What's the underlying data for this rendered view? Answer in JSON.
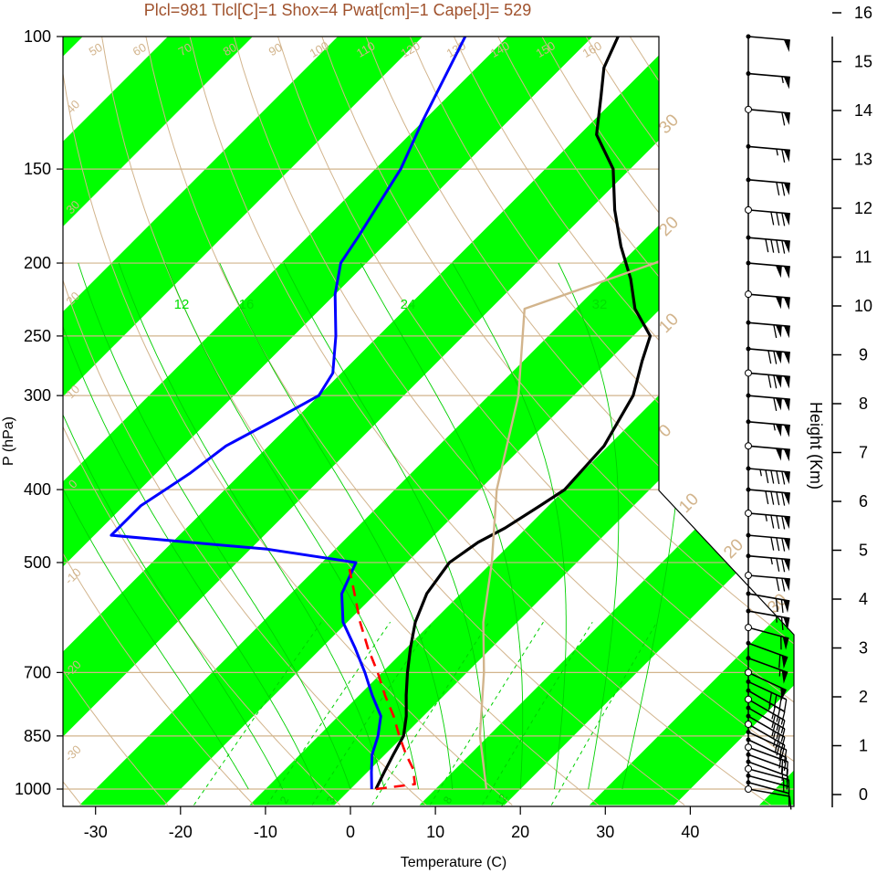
{
  "chart_data": {
    "type": "skew-t",
    "title": "Plcl=981 Tlcl[C]=1 Shox=4 Pwat[cm]=1 Cape[J]= 529",
    "xlabel": "Temperature (C)",
    "ylabel": "P (hPa)",
    "height_label": "Height (Km)",
    "x_ticks": [
      "-30",
      "-20",
      "-10",
      "0",
      "10",
      "20",
      "30",
      "40"
    ],
    "p_ticks": [
      "100",
      "150",
      "200",
      "250",
      "300",
      "400",
      "500",
      "700",
      "850",
      "1000"
    ],
    "height_ticks": [
      "0",
      "1",
      "2",
      "3",
      "4",
      "5",
      "6",
      "7",
      "8",
      "9",
      "10",
      "11",
      "12",
      "13",
      "14",
      "15",
      "16"
    ],
    "dry_adiabat_labels": [
      "50",
      "60",
      "70",
      "80",
      "90",
      "100",
      "110",
      "120",
      "130",
      "140",
      "150",
      "160"
    ],
    "temp_labels_left": [
      "40",
      "30",
      "20",
      "10",
      "0",
      "-10",
      "-20",
      "-30"
    ],
    "temp_labels_right": [
      "30",
      "20",
      "10",
      "0",
      "10",
      "20",
      "30"
    ],
    "moist_adiabat_labels": [
      "12",
      "16",
      "24",
      "32"
    ],
    "mixing_ratio_labels": [
      "2",
      "3",
      "8",
      "12"
    ],
    "xlim": [
      -34,
      52
    ],
    "plim": [
      1050,
      100
    ],
    "series": [
      {
        "role": "temperature",
        "color": "#000000",
        "points": [
          [
            1000,
            3
          ],
          [
            950,
            2
          ],
          [
            900,
            1
          ],
          [
            850,
            0
          ],
          [
            800,
            -2
          ],
          [
            750,
            -4.5
          ],
          [
            700,
            -7
          ],
          [
            650,
            -9.5
          ],
          [
            600,
            -12
          ],
          [
            550,
            -14
          ],
          [
            500,
            -15
          ],
          [
            470,
            -14
          ],
          [
            450,
            -12.5
          ],
          [
            420,
            -11
          ],
          [
            400,
            -10
          ],
          [
            350,
            -10.5
          ],
          [
            300,
            -13
          ],
          [
            270,
            -16
          ],
          [
            250,
            -18
          ],
          [
            230,
            -23
          ],
          [
            210,
            -27
          ],
          [
            190,
            -32
          ],
          [
            170,
            -37
          ],
          [
            150,
            -42
          ],
          [
            135,
            -48
          ],
          [
            120,
            -52
          ],
          [
            110,
            -55
          ],
          [
            100,
            -57
          ]
        ]
      },
      {
        "role": "dewpoint",
        "color": "#0000ff",
        "points": [
          [
            1000,
            2.5
          ],
          [
            950,
            0.5
          ],
          [
            900,
            -1.5
          ],
          [
            850,
            -3
          ],
          [
            800,
            -5
          ],
          [
            750,
            -8.5
          ],
          [
            700,
            -12
          ],
          [
            650,
            -16
          ],
          [
            600,
            -20.5
          ],
          [
            550,
            -24
          ],
          [
            500,
            -26
          ],
          [
            480,
            -38
          ],
          [
            470,
            -48
          ],
          [
            460,
            -58
          ],
          [
            420,
            -58
          ],
          [
            400,
            -57
          ],
          [
            380,
            -56
          ],
          [
            350,
            -55
          ],
          [
            320,
            -52
          ],
          [
            300,
            -50
          ],
          [
            280,
            -51
          ],
          [
            250,
            -55
          ],
          [
            220,
            -60
          ],
          [
            200,
            -63
          ],
          [
            185,
            -64
          ],
          [
            150,
            -67
          ],
          [
            130,
            -70
          ],
          [
            100,
            -75
          ]
        ]
      },
      {
        "role": "parcel",
        "color": "#ff0000",
        "points": [
          [
            1000,
            3
          ],
          [
            985,
            7
          ],
          [
            940,
            5
          ],
          [
            900,
            2.5
          ],
          [
            850,
            -0.5
          ],
          [
            800,
            -3.5
          ],
          [
            750,
            -7
          ],
          [
            700,
            -10.5
          ],
          [
            650,
            -14.5
          ],
          [
            600,
            -18.5
          ],
          [
            550,
            -22.5
          ],
          [
            510,
            -26
          ]
        ]
      },
      {
        "role": "reference",
        "color": "#d2b48c",
        "points": [
          [
            1000,
            16
          ],
          [
            850,
            9
          ],
          [
            700,
            2
          ],
          [
            600,
            -4
          ],
          [
            500,
            -10
          ],
          [
            400,
            -18
          ],
          [
            300,
            -26.5
          ],
          [
            230,
            -36
          ],
          [
            200,
            -26
          ],
          [
            150,
            -10
          ],
          [
            100,
            8
          ]
        ]
      }
    ],
    "wind_levels": [
      1000,
      980,
      960,
      940,
      920,
      900,
      880,
      860,
      840,
      820,
      800,
      780,
      760,
      740,
      720,
      700,
      670,
      640,
      610,
      580,
      550,
      520,
      490,
      460,
      430,
      400,
      375,
      350,
      325,
      300,
      280,
      260,
      240,
      220,
      200,
      185,
      170,
      155,
      140,
      125,
      112,
      100
    ],
    "wind_barbs": [
      {
        "speed": 10,
        "dir": 280
      },
      {
        "speed": 10,
        "dir": 285
      },
      {
        "speed": 15,
        "dir": 285
      },
      {
        "speed": 15,
        "dir": 285
      },
      {
        "speed": 15,
        "dir": 290
      },
      {
        "speed": 15,
        "dir": 290
      },
      {
        "speed": 20,
        "dir": 290
      },
      {
        "speed": 20,
        "dir": 295
      },
      {
        "speed": 25,
        "dir": 295
      },
      {
        "speed": 25,
        "dir": 300
      },
      {
        "speed": 25,
        "dir": 300
      },
      {
        "speed": 30,
        "dir": 300
      },
      {
        "speed": 30,
        "dir": 300
      },
      {
        "speed": 35,
        "dir": 300
      },
      {
        "speed": 40,
        "dir": 295
      },
      {
        "speed": 50,
        "dir": 295
      },
      {
        "speed": 55,
        "dir": 290
      },
      {
        "speed": 60,
        "dir": 290
      },
      {
        "speed": 60,
        "dir": 285
      },
      {
        "speed": 65,
        "dir": 280
      },
      {
        "speed": 70,
        "dir": 280
      },
      {
        "speed": 70,
        "dir": 275
      },
      {
        "speed": 75,
        "dir": 275
      },
      {
        "speed": 80,
        "dir": 275
      },
      {
        "speed": 85,
        "dir": 275
      },
      {
        "speed": 90,
        "dir": 275
      },
      {
        "speed": 95,
        "dir": 275
      },
      {
        "speed": 100,
        "dir": 275
      },
      {
        "speed": 105,
        "dir": 275
      },
      {
        "speed": 110,
        "dir": 275
      },
      {
        "speed": 120,
        "dir": 275
      },
      {
        "speed": 120,
        "dir": 275
      },
      {
        "speed": 110,
        "dir": 275
      },
      {
        "speed": 100,
        "dir": 275
      },
      {
        "speed": 100,
        "dir": 275
      },
      {
        "speed": 90,
        "dir": 275
      },
      {
        "speed": 80,
        "dir": 275
      },
      {
        "speed": 70,
        "dir": 275
      },
      {
        "speed": 65,
        "dir": 275
      },
      {
        "speed": 60,
        "dir": 275
      },
      {
        "speed": 55,
        "dir": 275
      },
      {
        "speed": 50,
        "dir": 275
      }
    ],
    "colors": {
      "band": "#00ff00",
      "isobar": "#d2b48c",
      "dry_adiabat": "#d2b48c",
      "moist_adiabat": "#00d000",
      "mixing_ratio": "#00d000",
      "title": "#a0522d"
    },
    "grid": true
  }
}
